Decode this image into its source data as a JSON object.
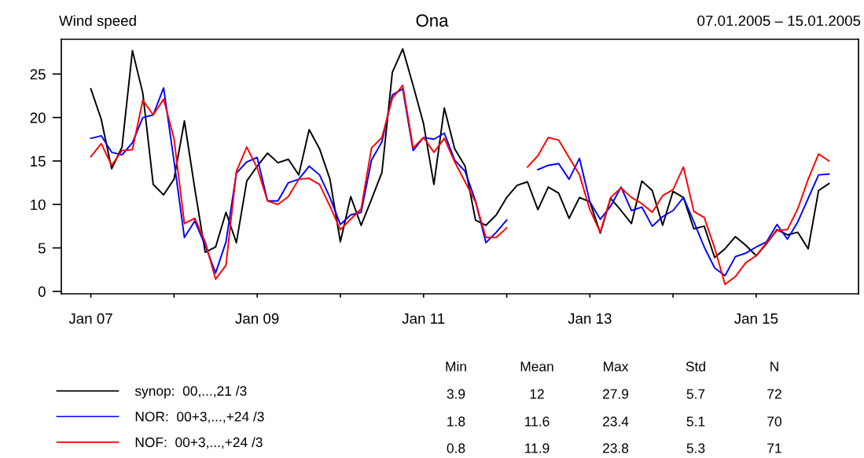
{
  "chart_data": {
    "type": "line",
    "title": "Ona",
    "subtitle": "07.01.2005 – 15.01.2005",
    "ylabel": "Wind speed",
    "x": [
      "2005-01-07T00:00",
      "2005-01-07T03:00",
      "2005-01-07T06:00",
      "2005-01-07T09:00",
      "2005-01-07T12:00",
      "2005-01-07T15:00",
      "2005-01-07T18:00",
      "2005-01-07T21:00",
      "2005-01-08T00:00",
      "2005-01-08T03:00",
      "2005-01-08T06:00",
      "2005-01-08T09:00",
      "2005-01-08T12:00",
      "2005-01-08T15:00",
      "2005-01-08T18:00",
      "2005-01-08T21:00",
      "2005-01-09T00:00",
      "2005-01-09T03:00",
      "2005-01-09T06:00",
      "2005-01-09T09:00",
      "2005-01-09T12:00",
      "2005-01-09T15:00",
      "2005-01-09T18:00",
      "2005-01-09T21:00",
      "2005-01-10T00:00",
      "2005-01-10T03:00",
      "2005-01-10T06:00",
      "2005-01-10T09:00",
      "2005-01-10T12:00",
      "2005-01-10T15:00",
      "2005-01-10T18:00",
      "2005-01-10T21:00",
      "2005-01-11T00:00",
      "2005-01-11T03:00",
      "2005-01-11T06:00",
      "2005-01-11T09:00",
      "2005-01-11T12:00",
      "2005-01-11T15:00",
      "2005-01-11T18:00",
      "2005-01-11T21:00",
      "2005-01-12T00:00",
      "2005-01-12T03:00",
      "2005-01-12T06:00",
      "2005-01-12T09:00",
      "2005-01-12T12:00",
      "2005-01-12T15:00",
      "2005-01-12T18:00",
      "2005-01-12T21:00",
      "2005-01-13T00:00",
      "2005-01-13T03:00",
      "2005-01-13T06:00",
      "2005-01-13T09:00",
      "2005-01-13T12:00",
      "2005-01-13T15:00",
      "2005-01-13T18:00",
      "2005-01-13T21:00",
      "2005-01-14T00:00",
      "2005-01-14T03:00",
      "2005-01-14T06:00",
      "2005-01-14T09:00",
      "2005-01-14T12:00",
      "2005-01-14T15:00",
      "2005-01-14T18:00",
      "2005-01-14T21:00",
      "2005-01-15T00:00",
      "2005-01-15T03:00",
      "2005-01-15T06:00",
      "2005-01-15T09:00",
      "2005-01-15T12:00",
      "2005-01-15T15:00",
      "2005-01-15T18:00",
      "2005-01-15T21:00"
    ],
    "series": [
      {
        "name": "synop:  00,...,21 /3",
        "color": "#000000",
        "values": [
          23.3,
          19.8,
          14.1,
          16.6,
          27.7,
          22.8,
          12.3,
          11.1,
          12.9,
          19.6,
          11.8,
          4.5,
          5.1,
          9.1,
          5.6,
          12.7,
          14.4,
          15.9,
          14.8,
          15.2,
          13.4,
          18.6,
          16.4,
          12.9,
          5.7,
          10.9,
          7.6,
          10.6,
          13.7,
          25.2,
          27.9,
          23.7,
          19.3,
          12.3,
          21.1,
          16.4,
          14.4,
          8.2,
          7.6,
          8.8,
          10.8,
          12.2,
          12.6,
          9.4,
          12.0,
          11.3,
          8.4,
          10.8,
          10.3,
          6.7,
          10.7,
          9.3,
          7.8,
          12.7,
          11.6,
          7.6,
          11.5,
          10.8,
          7.2,
          7.5,
          3.9,
          4.9,
          6.3,
          5.3,
          4.1,
          5.5,
          7.1,
          6.5,
          6.8,
          4.9,
          11.6,
          12.4
        ]
      },
      {
        "name": "NOR:  00+3,...,+24 /3",
        "color": "#0000ff",
        "values": [
          17.6,
          17.9,
          16.0,
          15.7,
          17.1,
          20.0,
          20.3,
          23.4,
          15.0,
          6.2,
          8.1,
          5.3,
          2.1,
          5.7,
          13.6,
          14.9,
          15.4,
          10.4,
          10.4,
          12.5,
          12.9,
          14.4,
          13.4,
          10.8,
          7.7,
          8.8,
          9.1,
          15.1,
          17.2,
          22.6,
          23.3,
          16.2,
          17.7,
          17.5,
          18.2,
          15.1,
          13.8,
          10.4,
          5.6,
          6.8,
          8.2,
          null,
          null,
          14.0,
          14.5,
          14.7,
          12.9,
          15.3,
          10.3,
          8.3,
          9.8,
          12.0,
          9.3,
          9.7,
          7.5,
          8.6,
          9.3,
          10.8,
          8.0,
          5.1,
          2.7,
          1.8,
          4.0,
          4.4,
          5.1,
          5.7,
          7.7,
          6.0,
          8.0,
          10.7,
          13.4,
          13.5
        ]
      },
      {
        "name": "NOF:  00+3,...,+24 /3",
        "color": "#ff0000",
        "values": [
          15.5,
          17.0,
          14.5,
          16.2,
          16.3,
          22.0,
          20.3,
          22.1,
          17.6,
          7.8,
          8.4,
          5.7,
          1.4,
          3.0,
          13.8,
          16.6,
          14.2,
          10.4,
          10.0,
          10.9,
          12.9,
          13.0,
          12.3,
          9.8,
          7.1,
          8.3,
          9.5,
          16.5,
          17.7,
          22.2,
          23.7,
          16.5,
          17.7,
          16.0,
          17.6,
          14.9,
          12.6,
          10.3,
          6.2,
          6.2,
          7.3,
          null,
          14.3,
          15.6,
          17.7,
          17.4,
          15.4,
          13.4,
          9.4,
          6.8,
          10.8,
          11.9,
          10.8,
          10.1,
          9.1,
          11.0,
          11.7,
          14.3,
          9.2,
          8.5,
          5.0,
          0.8,
          1.7,
          3.3,
          4.1,
          5.6,
          7.0,
          7.1,
          9.5,
          12.9,
          15.8,
          15.0
        ]
      }
    ],
    "xlim": [
      "2005-01-06T15:29",
      "2005-01-16T05:31"
    ],
    "xticks": [
      {
        "value": "2005-01-07",
        "label": "Jan 07"
      },
      {
        "value": "2005-01-08",
        "label": null
      },
      {
        "value": "2005-01-09",
        "label": "Jan 09"
      },
      {
        "value": "2005-01-10",
        "label": null
      },
      {
        "value": "2005-01-11",
        "label": "Jan 11"
      },
      {
        "value": "2005-01-12",
        "label": null
      },
      {
        "value": "2005-01-13",
        "label": "Jan 13"
      },
      {
        "value": "2005-01-14",
        "label": null
      },
      {
        "value": "2005-01-15",
        "label": "Jan 15"
      }
    ],
    "ylim": [
      -0.28,
      29.0
    ],
    "yticks": [
      0,
      5,
      10,
      15,
      20,
      25
    ],
    "grid": false,
    "legend": "bottom",
    "line_style": "solid",
    "annotations": [
      "Min",
      "Mean",
      "Max",
      "Std",
      "N",
      "3.9",
      "12",
      "27.9",
      "5.7",
      "72",
      "1.8",
      "11.6",
      "23.4",
      "5.1",
      "70",
      "0.8",
      "11.9",
      "23.8",
      "5.3",
      "71"
    ]
  }
}
